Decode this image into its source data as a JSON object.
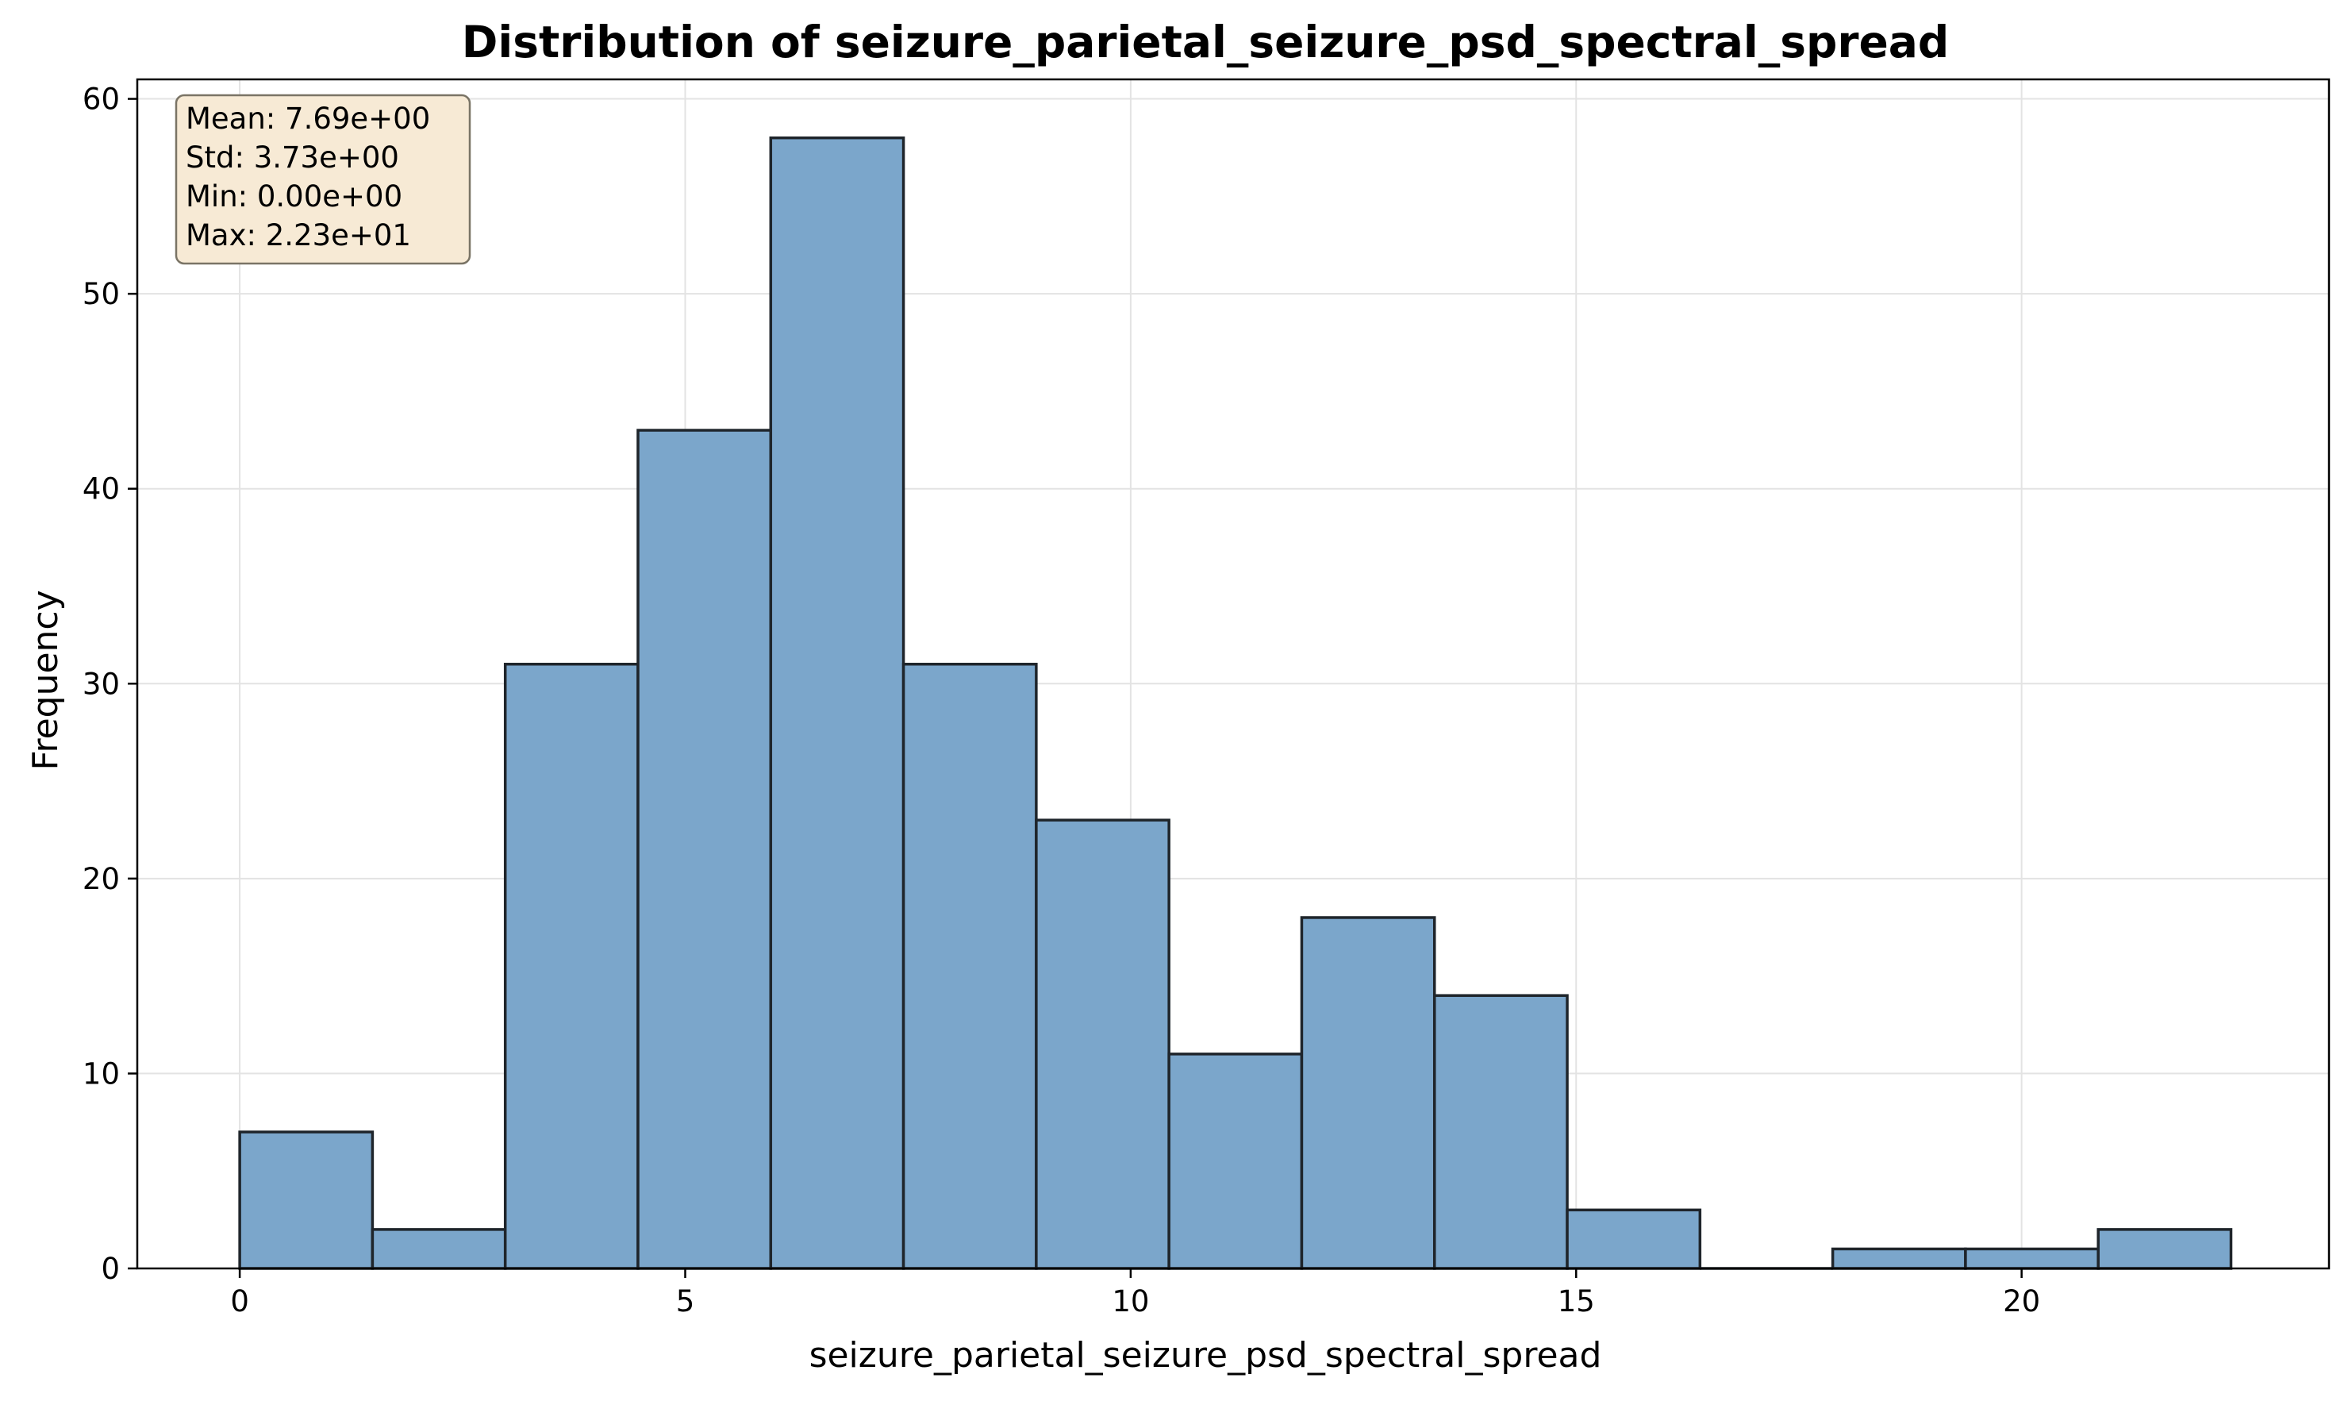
{
  "chart_data": {
    "type": "bar",
    "title": "Distribution of seizure_parietal_seizure_psd_spectral_spread",
    "xlabel": "seizure_parietal_seizure_psd_spectral_spread",
    "ylabel": "Frequency",
    "xlim": [
      -1.15,
      23.45
    ],
    "ylim": [
      0,
      61
    ],
    "x_ticks": [
      0,
      5,
      10,
      15,
      20
    ],
    "y_ticks": [
      0,
      10,
      20,
      30,
      40,
      50,
      60
    ],
    "grid": true,
    "bin_edges": [
      0,
      1.49,
      2.98,
      4.47,
      5.96,
      7.45,
      8.94,
      10.43,
      11.92,
      13.41,
      14.9,
      16.39,
      17.88,
      19.37,
      20.86,
      22.35
    ],
    "counts": [
      7,
      2,
      31,
      43,
      58,
      31,
      23,
      11,
      18,
      14,
      3,
      0,
      1,
      1,
      2
    ],
    "bar_color": "#7ba6cb",
    "edge_color": "#1f252b",
    "stats_box": {
      "lines": [
        "Mean: 7.69e+00",
        "Std: 3.73e+00",
        "Min: 0.00e+00",
        "Max: 2.23e+01"
      ],
      "position": "top-left",
      "background": "#f7ead5"
    }
  }
}
